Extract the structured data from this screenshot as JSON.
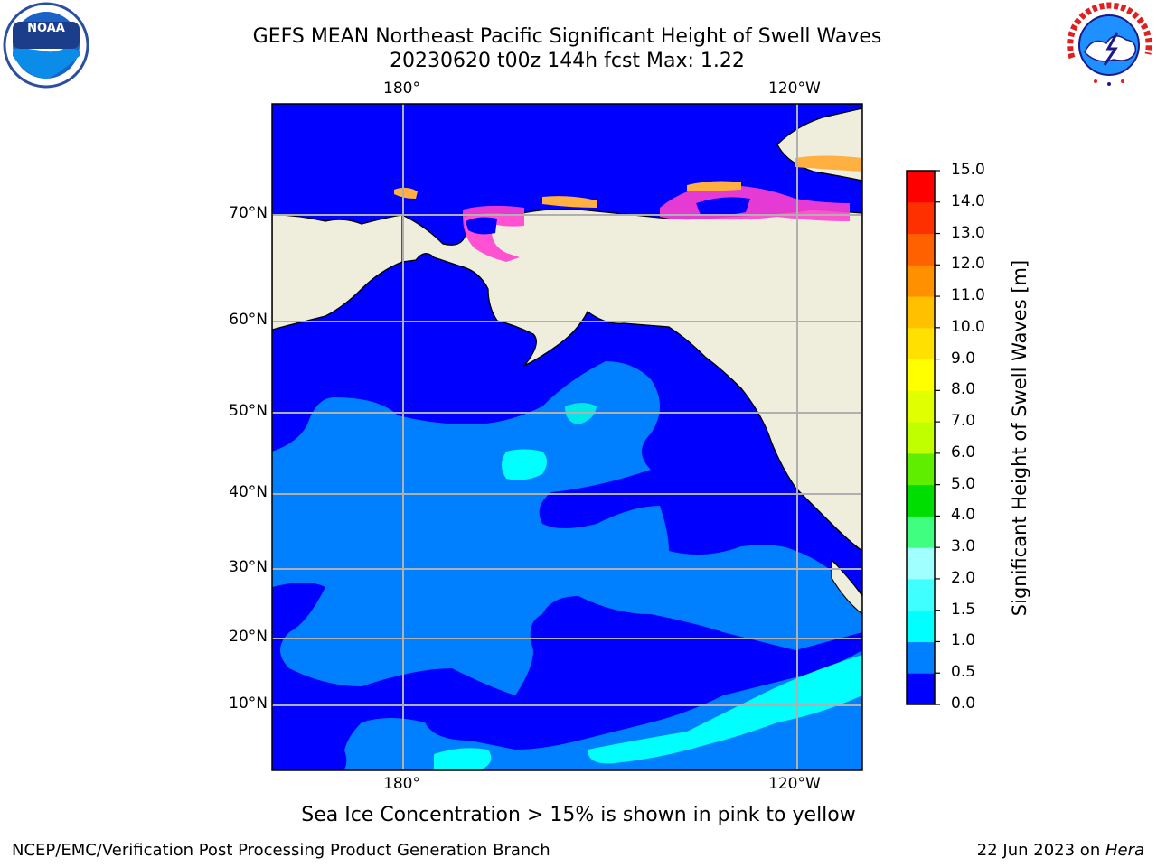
{
  "title_line1": "GEFS MEAN Northeast Pacific Significant Height of Swell Waves",
  "title_line2": "20230620 t00z 144h fcst   Max: 1.22",
  "caption": "Sea Ice Concentration > 15% is shown in pink to yellow",
  "footer_left": "NCEP/EMC/Verification Post Processing Product Generation Branch",
  "footer_right_date": "22 Jun 2023 on ",
  "footer_right_host": "Hera",
  "logos": {
    "left": "NOAA",
    "right": "NATIONAL WEATHER SERVICE"
  },
  "map": {
    "lon_labels_top": [
      "180°",
      "120°W"
    ],
    "lon_labels_bottom": [
      "180°",
      "120°W"
    ],
    "lat_labels": [
      "70°N",
      "60°N",
      "50°N",
      "40°N",
      "30°N",
      "20°N",
      "10°N"
    ]
  },
  "colorbar": {
    "title": "Significant Height of Swell Waves [m]",
    "ticks": [
      "0.0",
      "0.5",
      "1.0",
      "1.5",
      "2.0",
      "3.0",
      "4.0",
      "5.0",
      "6.0",
      "7.0",
      "8.0",
      "9.0",
      "10.0",
      "11.0",
      "12.0",
      "13.0",
      "14.0",
      "15.0"
    ],
    "colors": [
      "#0000ff",
      "#0080ff",
      "#00ffff",
      "#40ffff",
      "#a0ffff",
      "#40ff80",
      "#00dd00",
      "#60ee00",
      "#c0ff00",
      "#e0ff00",
      "#ffff00",
      "#ffe000",
      "#ffc000",
      "#ff9000",
      "#ff6000",
      "#ff3000",
      "#ff0000"
    ]
  },
  "colors": {
    "land": "#efeedc",
    "ocean_low": "#0000ff",
    "ocean_mid": "#0080ff",
    "ocean_high": "#00ffff",
    "ice_pink": "#ff40d0",
    "ice_orange": "#ffb040",
    "grid": "#b0b0b0"
  }
}
